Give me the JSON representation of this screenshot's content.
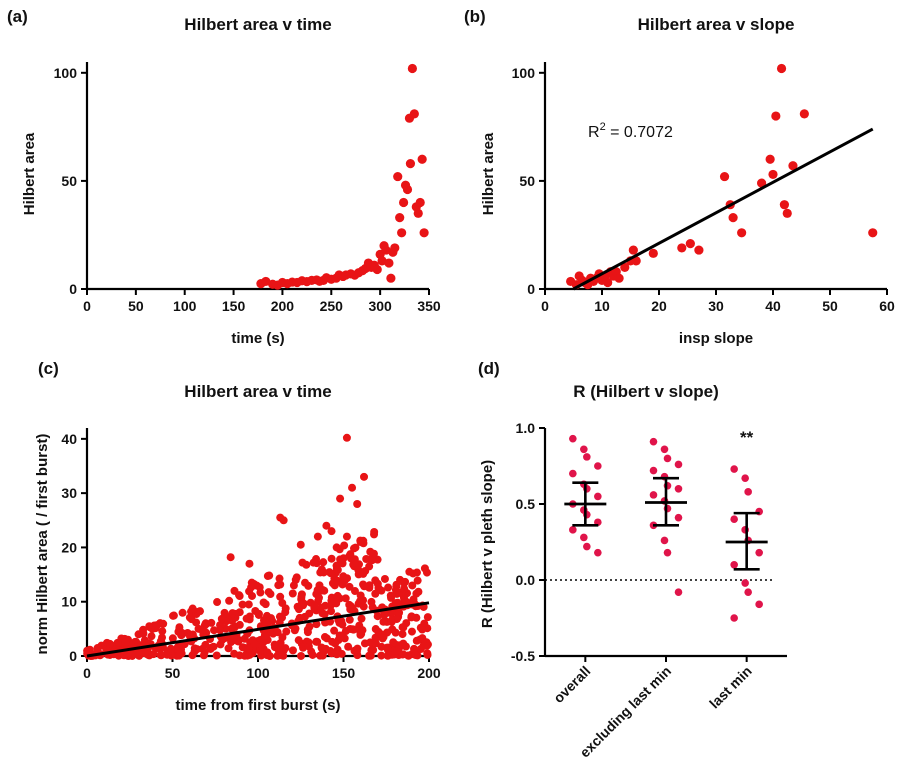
{
  "colors": {
    "points": "#e81416",
    "points_d": "#e0144a",
    "fit": "#000000",
    "axis": "#000000"
  },
  "chart_data": [
    {
      "panel": "(a)",
      "type": "scatter",
      "title": "Hilbert area v time",
      "xlabel": "time (s)",
      "ylabel": "Hilbert area",
      "xlim": [
        0,
        350
      ],
      "ylim": [
        0,
        105
      ],
      "xticks": [
        0,
        50,
        100,
        150,
        200,
        250,
        300,
        350
      ],
      "yticks": [
        0,
        50,
        100
      ],
      "grid": false,
      "points": [
        [
          178,
          2.5
        ],
        [
          183,
          3.5
        ],
        [
          190,
          2.2
        ],
        [
          195,
          1.8
        ],
        [
          200,
          3
        ],
        [
          205,
          2.5
        ],
        [
          210,
          3.2
        ],
        [
          215,
          3
        ],
        [
          220,
          3.8
        ],
        [
          225,
          3.4
        ],
        [
          230,
          4
        ],
        [
          235,
          4.2
        ],
        [
          238,
          3.6
        ],
        [
          242,
          4
        ],
        [
          245,
          5.2
        ],
        [
          250,
          4.5
        ],
        [
          255,
          5
        ],
        [
          258,
          6.5
        ],
        [
          262,
          5.8
        ],
        [
          265,
          6.5
        ],
        [
          270,
          7
        ],
        [
          274,
          6.4
        ],
        [
          278,
          7.5
        ],
        [
          282,
          8.5
        ],
        [
          285,
          9.5
        ],
        [
          288,
          12
        ],
        [
          291,
          10
        ],
        [
          294,
          11
        ],
        [
          297,
          9
        ],
        [
          300,
          16
        ],
        [
          302,
          13
        ],
        [
          304,
          20
        ],
        [
          306,
          18
        ],
        [
          309,
          12
        ],
        [
          311,
          5
        ],
        [
          313,
          17
        ],
        [
          315,
          19
        ],
        [
          318,
          52
        ],
        [
          320,
          33
        ],
        [
          322,
          26
        ],
        [
          324,
          40
        ],
        [
          326,
          48
        ],
        [
          328,
          46
        ],
        [
          330,
          79
        ],
        [
          331,
          58
        ],
        [
          333,
          102
        ],
        [
          335,
          81
        ],
        [
          337,
          38
        ],
        [
          339,
          35
        ],
        [
          341,
          40
        ],
        [
          343,
          60
        ],
        [
          345,
          26
        ]
      ]
    },
    {
      "panel": "(b)",
      "type": "scatter",
      "title": "Hilbert area v slope",
      "xlabel": "insp slope",
      "ylabel": "Hilbert area",
      "xlim": [
        0,
        60
      ],
      "ylim": [
        0,
        105
      ],
      "xticks": [
        0,
        10,
        20,
        30,
        40,
        50,
        60
      ],
      "yticks": [
        0,
        50,
        100
      ],
      "grid": false,
      "annotation": {
        "prefix": "R",
        "sup": "2",
        "suffix": " = 0.7072"
      },
      "fit_line": {
        "x": [
          5,
          57.5
        ],
        "y": [
          0,
          74
        ]
      },
      "points": [
        [
          4.5,
          3.5
        ],
        [
          5.5,
          2
        ],
        [
          6,
          6
        ],
        [
          6.5,
          4
        ],
        [
          7,
          3
        ],
        [
          7.5,
          2
        ],
        [
          8,
          5
        ],
        [
          8.5,
          3.5
        ],
        [
          9,
          5
        ],
        [
          9.5,
          7
        ],
        [
          10,
          4
        ],
        [
          10.5,
          6
        ],
        [
          11,
          3
        ],
        [
          11.5,
          8
        ],
        [
          12,
          6
        ],
        [
          12.5,
          8
        ],
        [
          13,
          5
        ],
        [
          14,
          10
        ],
        [
          15,
          13
        ],
        [
          15.5,
          18
        ],
        [
          16,
          13
        ],
        [
          19,
          16.5
        ],
        [
          24,
          19
        ],
        [
          25.5,
          21
        ],
        [
          27,
          18
        ],
        [
          31.5,
          52
        ],
        [
          32.5,
          39
        ],
        [
          33,
          33
        ],
        [
          34.5,
          26
        ],
        [
          38,
          49
        ],
        [
          39.5,
          60
        ],
        [
          40,
          53
        ],
        [
          40.5,
          80
        ],
        [
          41.5,
          102
        ],
        [
          42,
          39
        ],
        [
          42.5,
          35
        ],
        [
          43.5,
          57
        ],
        [
          45.5,
          81
        ],
        [
          57.5,
          26
        ]
      ]
    },
    {
      "panel": "(c)",
      "type": "scatter",
      "title": "Hilbert area v time",
      "xlabel": "time from first burst (s)",
      "ylabel": "norm Hilbert area ( / first burst)",
      "xlim": [
        0,
        200
      ],
      "ylim": [
        0,
        42
      ],
      "xticks": [
        0,
        50,
        100,
        150,
        200
      ],
      "yticks": [
        0,
        10,
        20,
        30,
        40
      ],
      "grid": false,
      "fit_line": {
        "x": [
          0,
          200
        ],
        "y": [
          0,
          9.8
        ]
      },
      "n_points": 640,
      "notable_points": [
        [
          152,
          40.2
        ],
        [
          162,
          33
        ],
        [
          155,
          31
        ],
        [
          148,
          29
        ],
        [
          158,
          28
        ],
        [
          113,
          25.5
        ],
        [
          115,
          25
        ],
        [
          140,
          24
        ],
        [
          143,
          23
        ],
        [
          135,
          22
        ],
        [
          152,
          22
        ],
        [
          160,
          21
        ],
        [
          125,
          20.5
        ],
        [
          146,
          20
        ],
        [
          84,
          18.2
        ],
        [
          150,
          18
        ],
        [
          95,
          17
        ],
        [
          165,
          16.5
        ]
      ]
    },
    {
      "panel": "(d)",
      "type": "scatter",
      "title": "R (Hilbert v slope)",
      "xlabel": "",
      "ylabel": "R (Hilbert v pleth slope)",
      "categories": [
        "overall",
        "excluding last min",
        "last min"
      ],
      "ylim": [
        -0.5,
        1.0
      ],
      "yticks": [
        -0.5,
        0.0,
        0.5,
        1.0
      ],
      "grid": false,
      "reference_line": 0.0,
      "significance": {
        "category": "last min",
        "label": "**"
      },
      "groups": [
        {
          "mean": 0.5,
          "ci": [
            0.36,
            0.64
          ],
          "values": [
            0.93,
            0.86,
            0.81,
            0.75,
            0.7,
            0.63,
            0.6,
            0.55,
            0.5,
            0.46,
            0.43,
            0.38,
            0.33,
            0.28,
            0.22,
            0.18
          ]
        },
        {
          "mean": 0.51,
          "ci": [
            0.36,
            0.67
          ],
          "values": [
            0.91,
            0.86,
            0.8,
            0.76,
            0.72,
            0.68,
            0.62,
            0.6,
            0.56,
            0.52,
            0.47,
            0.41,
            0.36,
            0.26,
            0.18,
            -0.08
          ]
        },
        {
          "mean": 0.25,
          "ci": [
            0.07,
            0.44
          ],
          "values": [
            0.73,
            0.67,
            0.58,
            0.45,
            0.4,
            0.33,
            0.26,
            0.18,
            0.1,
            -0.02,
            -0.08,
            -0.16,
            -0.25
          ]
        }
      ]
    }
  ]
}
